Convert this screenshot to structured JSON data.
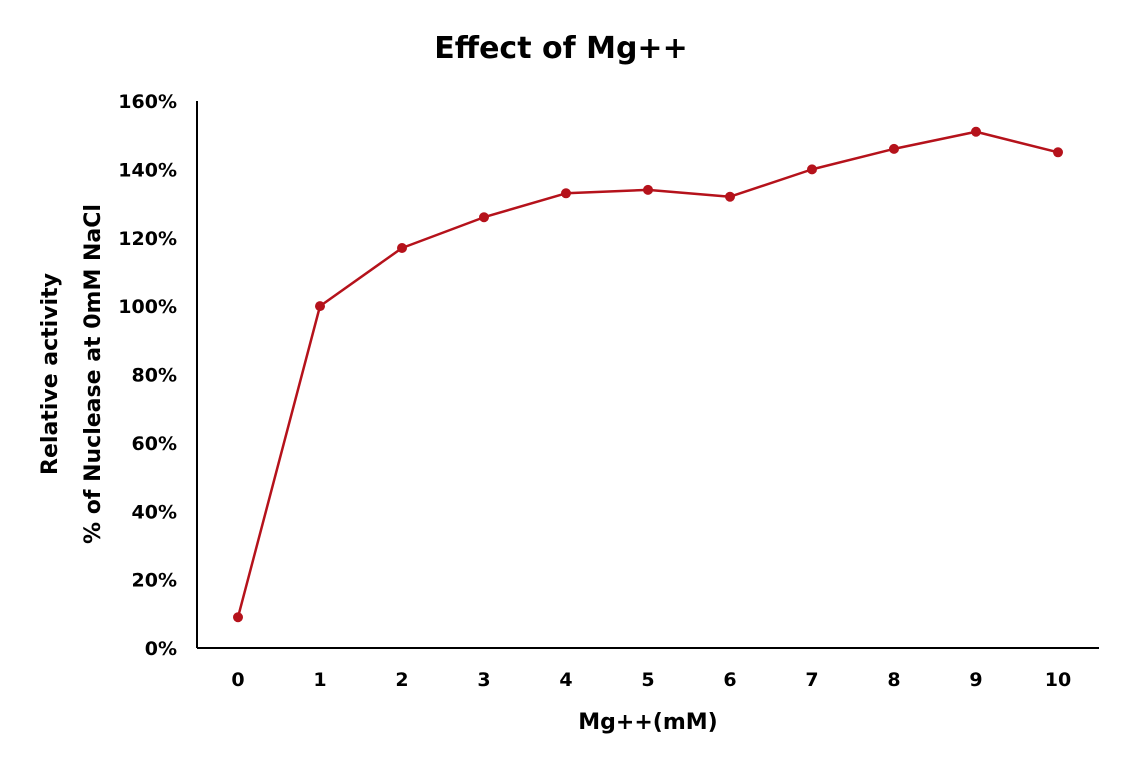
{
  "chart_data": {
    "type": "line",
    "title": "Effect of Mg++",
    "xlabel": "Mg++(mM)",
    "ylabel": [
      "Relative activity",
      "% of Nuclease at 0mM NaCl"
    ],
    "categories": [
      "0",
      "1",
      "2",
      "3",
      "4",
      "5",
      "6",
      "7",
      "8",
      "9",
      "10"
    ],
    "y_ticks": [
      "0%",
      "20%",
      "40%",
      "60%",
      "80%",
      "100%",
      "120%",
      "140%",
      "160%"
    ],
    "ylim": [
      0,
      160
    ],
    "grid": false,
    "legend": "none",
    "series": [
      {
        "values": [
          9,
          100,
          117,
          126,
          133,
          134,
          132,
          140,
          146,
          151,
          145
        ],
        "color": "#b5121b"
      }
    ]
  }
}
